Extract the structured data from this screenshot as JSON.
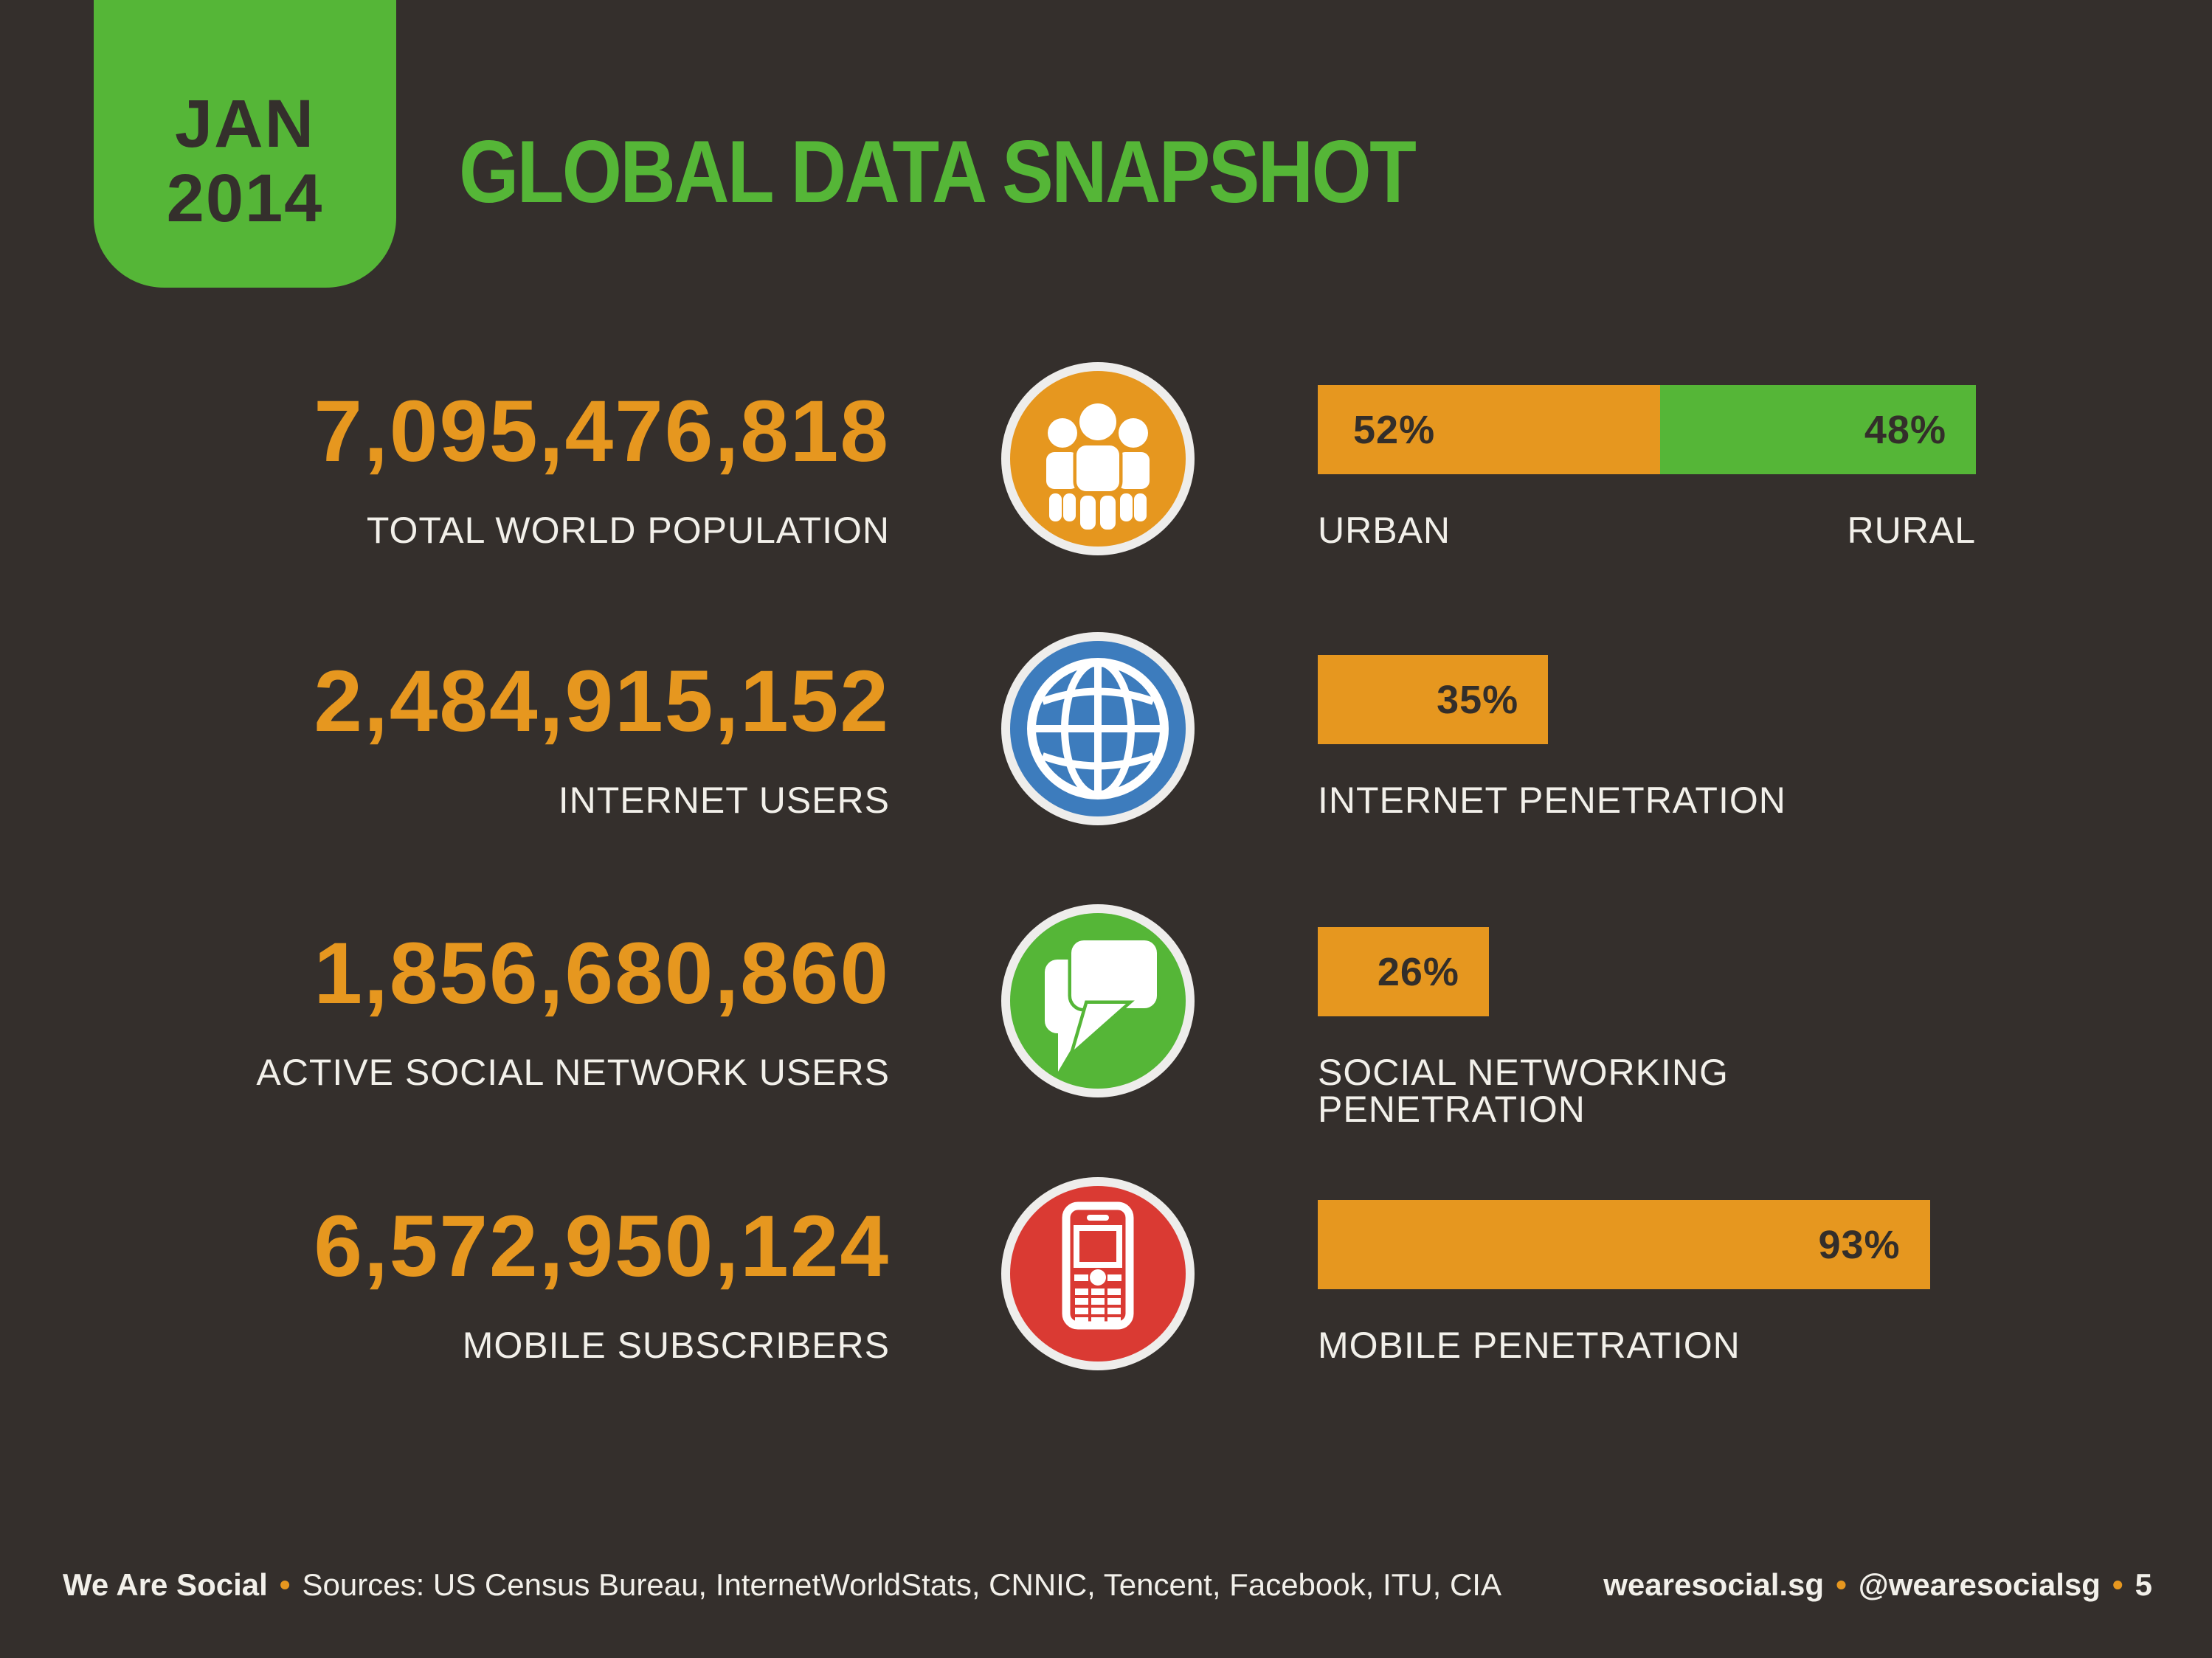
{
  "colors": {
    "background": "#342f2c",
    "orange": "#e6971f",
    "green": "#55b637",
    "blue": "#3d7cbd",
    "red": "#da3a33",
    "off_white": "#f2f0ea",
    "dark_text": "#332e2a",
    "ring": "#eeedeb"
  },
  "badge": {
    "line1": "JAN",
    "line2": "2014"
  },
  "title": "GLOBAL DATA SNAPSHOT",
  "rows": [
    {
      "value": "7,095,476,818",
      "label": "TOTAL WORLD POPULATION",
      "icon": "people-icon",
      "icon_color": "#e6971f",
      "bar": {
        "segments": [
          {
            "pct": 52,
            "label": "52%",
            "color": "#e6971f"
          },
          {
            "pct": 48,
            "label": "48%",
            "color": "#55b637"
          }
        ],
        "footers": [
          "URBAN",
          "RURAL"
        ]
      }
    },
    {
      "value": "2,484,915,152",
      "label": "INTERNET USERS",
      "icon": "globe-icon",
      "icon_color": "#3d7cbd",
      "bar": {
        "segments": [
          {
            "pct": 35,
            "label": "35%",
            "color": "#e6971f"
          }
        ],
        "footers": [
          "INTERNET PENETRATION"
        ]
      }
    },
    {
      "value": "1,856,680,860",
      "label": "ACTIVE SOCIAL NETWORK USERS",
      "icon": "chat-icon",
      "icon_color": "#55b637",
      "bar": {
        "segments": [
          {
            "pct": 26,
            "label": "26%",
            "color": "#e6971f"
          }
        ],
        "footers": [
          "SOCIAL NETWORKING PENETRATION"
        ]
      }
    },
    {
      "value": "6,572,950,124",
      "label": "MOBILE SUBSCRIBERS",
      "icon": "phone-icon",
      "icon_color": "#da3a33",
      "bar": {
        "segments": [
          {
            "pct": 93,
            "label": "93%",
            "color": "#e6971f"
          }
        ],
        "footers": [
          "MOBILE PENETRATION"
        ]
      }
    }
  ],
  "footer": {
    "brand": "We Are Social",
    "bullet": "•",
    "sources": "Sources: US Census Bureau, InternetWorldStats, CNNIC, Tencent, Facebook, ITU, CIA",
    "site": "wearesocial.sg",
    "handle": "@wearesocialsg",
    "page_number": "5"
  },
  "chart_data": [
    {
      "type": "bar",
      "title": "Urban vs rural share of total world population",
      "categories": [
        "URBAN",
        "RURAL"
      ],
      "values": [
        52,
        48
      ],
      "unit": "%",
      "colors": [
        "#e6971f",
        "#55b637"
      ],
      "layout": "single stacked horizontal bar, labels inside segments"
    },
    {
      "type": "bar",
      "title": "Penetration rates (share of total world population)",
      "categories": [
        "INTERNET PENETRATION",
        "SOCIAL NETWORKING PENETRATION",
        "MOBILE PENETRATION"
      ],
      "values": [
        35,
        26,
        93
      ],
      "unit": "%",
      "xlim": [
        0,
        100
      ],
      "color": "#e6971f",
      "layout": "horizontal bars, value label inside right end of each bar"
    },
    {
      "type": "table",
      "title": "Global headline figures, Jan 2014",
      "categories": [
        "TOTAL WORLD POPULATION",
        "INTERNET USERS",
        "ACTIVE SOCIAL NETWORK USERS",
        "MOBILE SUBSCRIBERS"
      ],
      "values": [
        7095476818,
        2484915152,
        1856680860,
        6572950124
      ]
    }
  ]
}
